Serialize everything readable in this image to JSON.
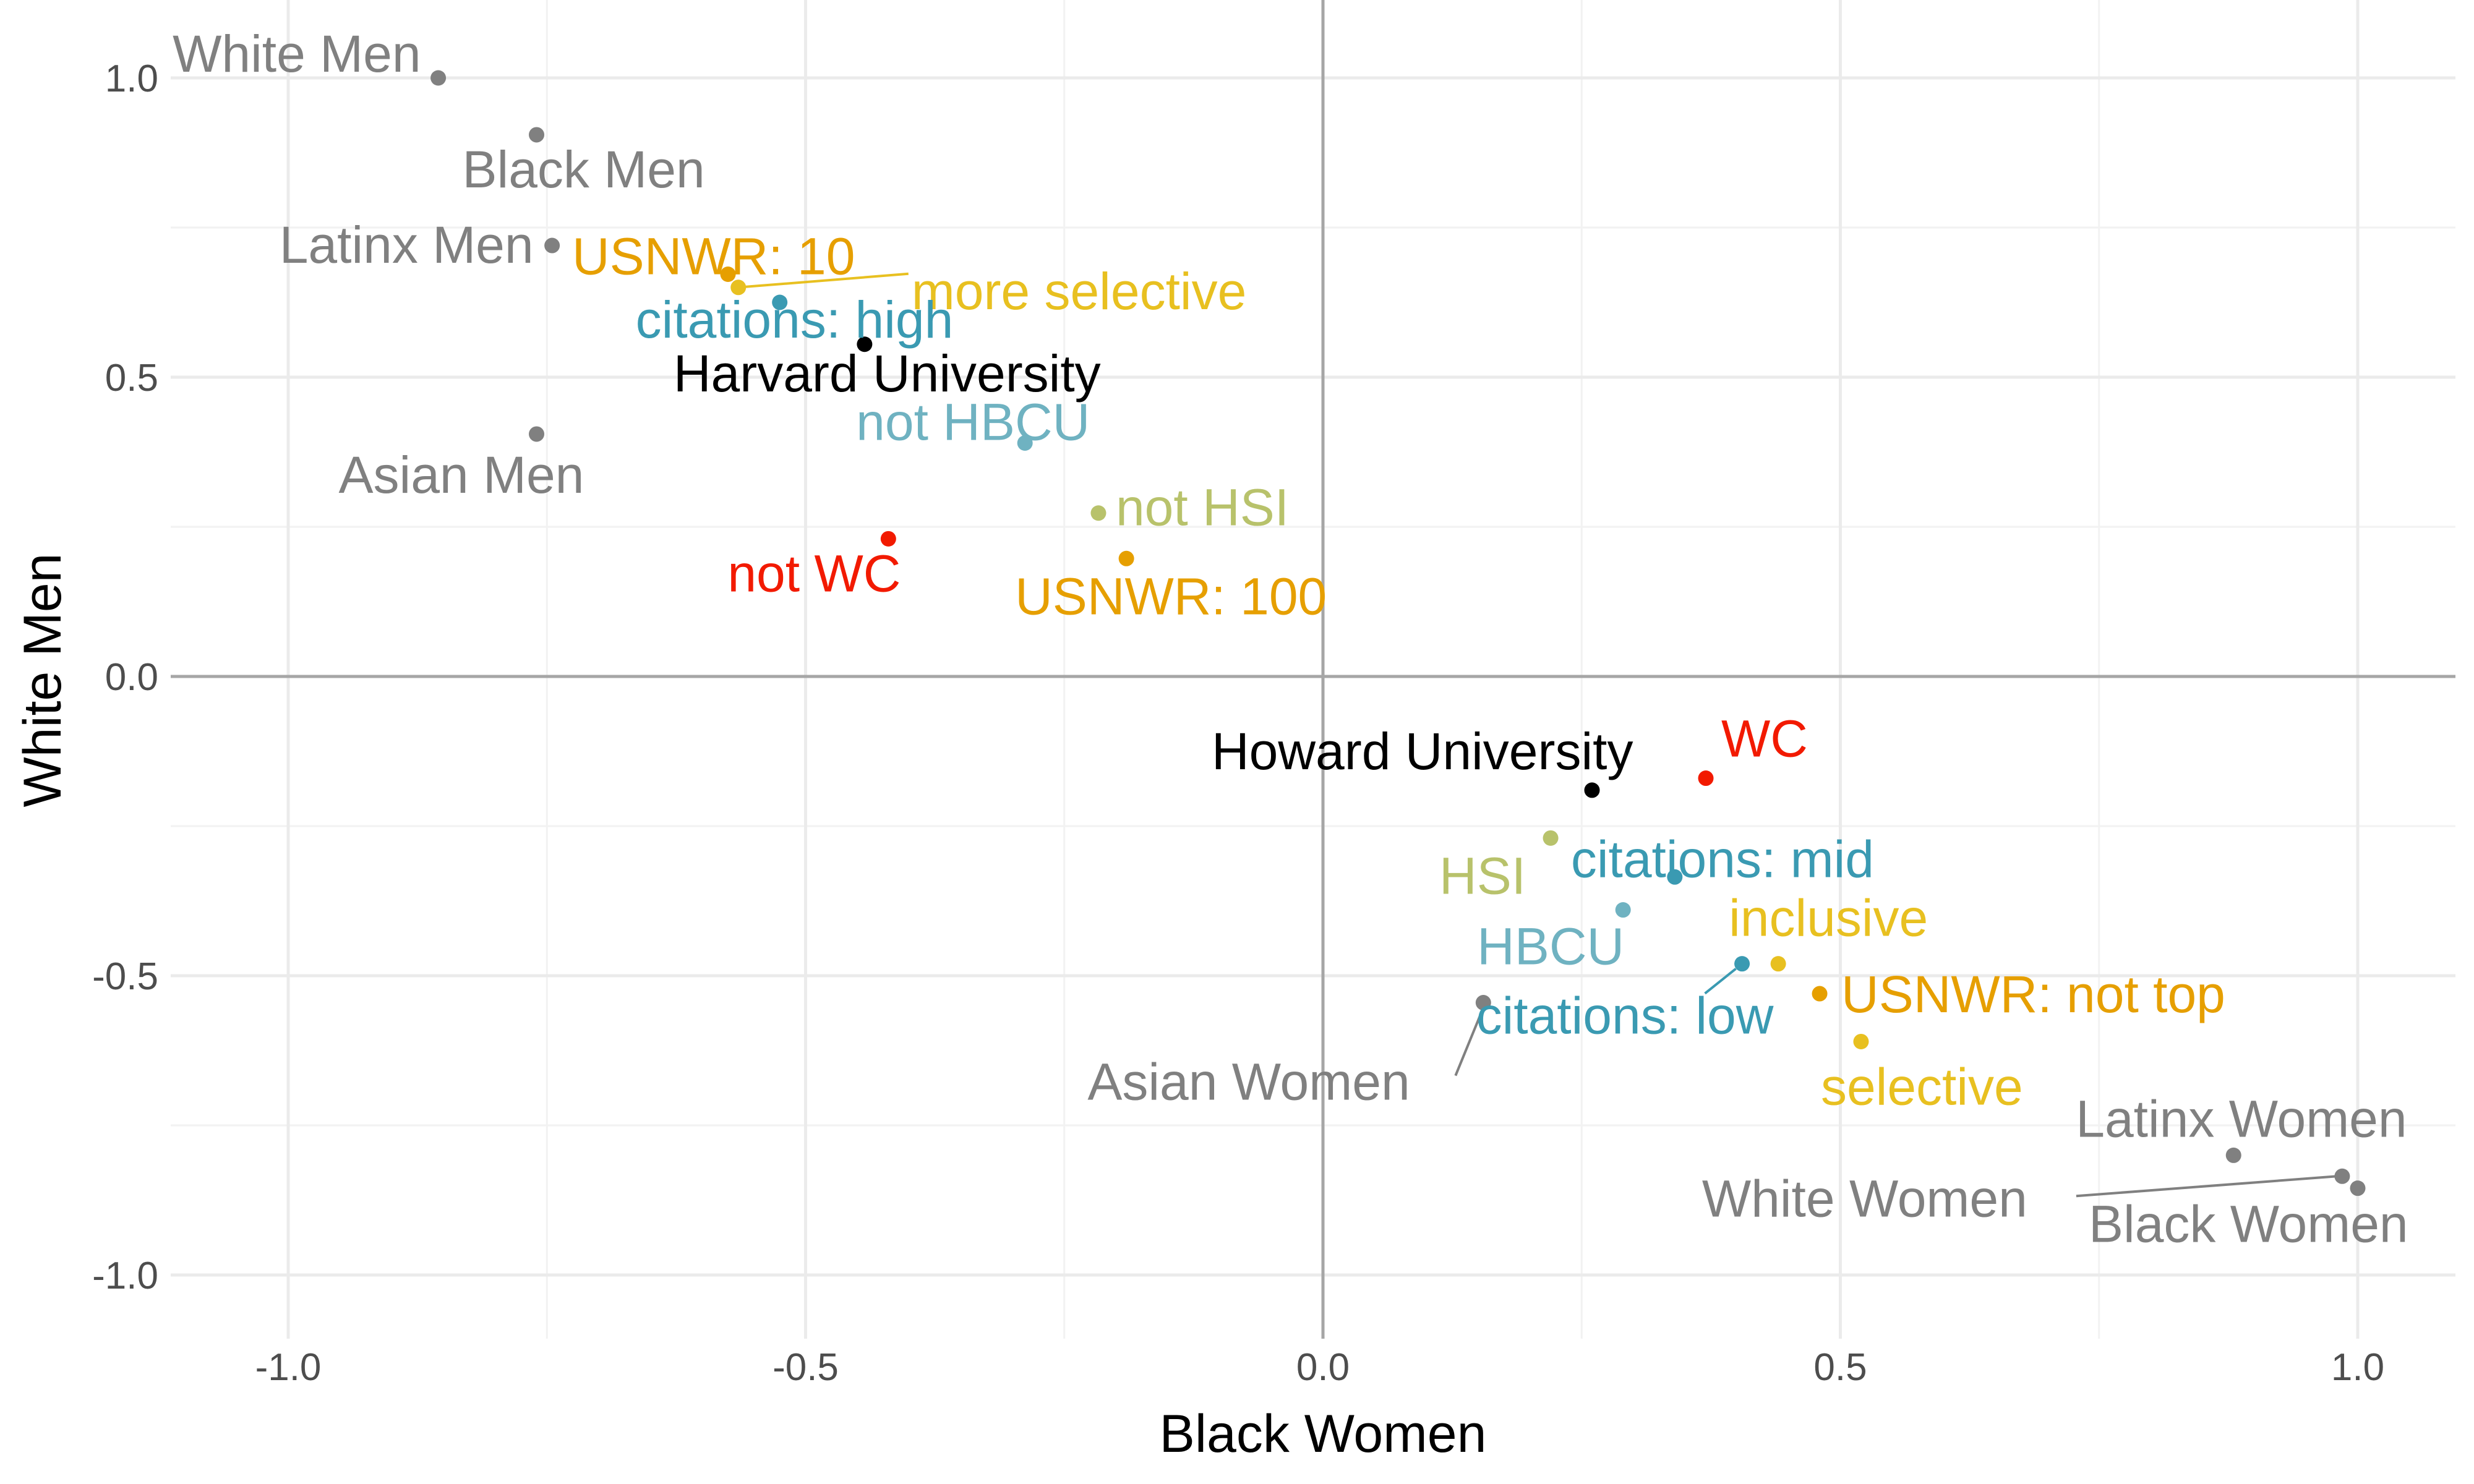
{
  "chart_data": {
    "type": "scatter",
    "title": "",
    "xlabel": "Black Women",
    "ylabel": "White Men",
    "xlim": [
      -1.1,
      1.1
    ],
    "ylim": [
      -1.1,
      1.1
    ],
    "x_ticks": [
      "-1.0",
      "-0.5",
      "0.0",
      "0.5",
      "1.0"
    ],
    "y_ticks": [
      "-1.0",
      "-0.5",
      "0.0",
      "0.5",
      "1.0"
    ],
    "grid": true,
    "zero_lines": true,
    "legend": "none",
    "points": [
      {
        "label": "White Men",
        "x": -0.855,
        "y": 1.0,
        "color": "#808080"
      },
      {
        "label": "Black Men",
        "x": -0.76,
        "y": 0.905,
        "color": "#808080"
      },
      {
        "label": "Latinx Men",
        "x": -0.745,
        "y": 0.72,
        "color": "#808080"
      },
      {
        "label": "Asian Men",
        "x": -0.76,
        "y": 0.405,
        "color": "#808080"
      },
      {
        "label": "USNWR: 10",
        "x": -0.575,
        "y": 0.672,
        "color": "#E69F00"
      },
      {
        "label": "more selective",
        "x": -0.565,
        "y": 0.65,
        "color": "#E8C020"
      },
      {
        "label": "citations: high",
        "x": -0.525,
        "y": 0.625,
        "color": "#3A9AB2"
      },
      {
        "label": "Harvard University",
        "x": -0.443,
        "y": 0.555,
        "color": "#000000"
      },
      {
        "label": "not HBCU",
        "x": -0.288,
        "y": 0.39,
        "color": "#6FB2C1"
      },
      {
        "label": "not HSI",
        "x": -0.217,
        "y": 0.273,
        "color": "#B8C26B"
      },
      {
        "label": "not WC",
        "x": -0.42,
        "y": 0.23,
        "color": "#F21A00"
      },
      {
        "label": "USNWR: 100",
        "x": -0.19,
        "y": 0.197,
        "color": "#E69F00"
      },
      {
        "label": "Howard University",
        "x": 0.26,
        "y": -0.19,
        "color": "#000000"
      },
      {
        "label": "WC",
        "x": 0.37,
        "y": -0.17,
        "color": "#F21A00"
      },
      {
        "label": "HSI",
        "x": 0.22,
        "y": -0.27,
        "color": "#B8C26B"
      },
      {
        "label": "citations: mid",
        "x": 0.34,
        "y": -0.335,
        "color": "#3A9AB2"
      },
      {
        "label": "HBCU",
        "x": 0.29,
        "y": -0.39,
        "color": "#6FB2C1"
      },
      {
        "label": "inclusive",
        "x": 0.44,
        "y": -0.48,
        "color": "#E8C020"
      },
      {
        "label": "citations: low",
        "x": 0.405,
        "y": -0.48,
        "color": "#3A9AB2"
      },
      {
        "label": "USNWR: not top",
        "x": 0.48,
        "y": -0.53,
        "color": "#E69F00"
      },
      {
        "label": "Asian Women",
        "x": 0.155,
        "y": -0.545,
        "color": "#808080"
      },
      {
        "label": "selective",
        "x": 0.52,
        "y": -0.61,
        "color": "#E8C020"
      },
      {
        "label": "Latinx Women",
        "x": 0.88,
        "y": -0.8,
        "color": "#808080"
      },
      {
        "label": "White Women",
        "x": 0.985,
        "y": -0.835,
        "color": "#808080"
      },
      {
        "label": "Black Women",
        "x": 1.0,
        "y": -0.855,
        "color": "#808080"
      }
    ]
  }
}
